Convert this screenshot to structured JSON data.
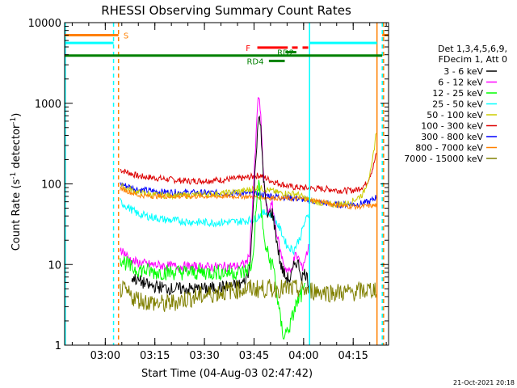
{
  "chart_data": {
    "type": "line",
    "title": "RHESSI Observing Summary Count Rates",
    "xlabel": "Start Time (04-Aug-03 02:47:42)",
    "ylabel_main": "Count Rate (s",
    "ylabel_sup1": "-1",
    "ylabel_mid": " detector",
    "ylabel_sup2": "-1",
    "ylabel_end": ")",
    "footer_date": "21-Oct-2021 20:18",
    "x_start_min": 167.7,
    "x_end_min": 265.7,
    "ylim": [
      1,
      10000
    ],
    "x_ticks": [
      {
        "min": 180,
        "label": "03:00"
      },
      {
        "min": 195,
        "label": "03:15"
      },
      {
        "min": 210,
        "label": "03:30"
      },
      {
        "min": 225,
        "label": "03:45"
      },
      {
        "min": 240,
        "label": "04:00"
      },
      {
        "min": 255,
        "label": "04:15"
      }
    ],
    "y_ticks": [
      {
        "value": 1,
        "label": "1"
      },
      {
        "value": 10,
        "label": "10"
      },
      {
        "value": 100,
        "label": "100"
      },
      {
        "value": 1000,
        "label": "1000"
      },
      {
        "value": 10000,
        "label": "10000"
      }
    ],
    "legend": {
      "header1": "Det 1,3,4,5,6,9,",
      "header2": "FDecim 1, Att 0",
      "entries": [
        {
          "label": "3 - 6 keV",
          "color": "#000000"
        },
        {
          "label": "6 - 12 keV",
          "color": "#ff00ff"
        },
        {
          "label": "12 - 25 keV",
          "color": "#00ff00"
        },
        {
          "label": "25 - 50 keV",
          "color": "#00ffff"
        },
        {
          "label": "50 - 100 keV",
          "color": "#cccc00"
        },
        {
          "label": "100 - 300 keV",
          "color": "#dd0000"
        },
        {
          "label": "300 - 800 keV",
          "color": "#0000ff"
        },
        {
          "label": "800 - 7000 keV",
          "color": "#ff8000"
        },
        {
          "label": "7000 - 15000 keV",
          "color": "#808000"
        }
      ]
    },
    "flags": [
      {
        "label": "S",
        "color": "#ff8000",
        "segments": [
          [
            167.7,
            184.0
          ]
        ],
        "y": 7000,
        "label_at": 185.5,
        "style": "solid"
      },
      {
        "label": "",
        "color": "#00ffff",
        "segments": [
          [
            167.7,
            182.5
          ],
          [
            241.8,
            262.2
          ]
        ],
        "y": 5600,
        "style": "solid"
      },
      {
        "label": "",
        "color": "#ff8000",
        "segments": [
          [
            263.8,
            265.7
          ]
        ],
        "y": 7000,
        "style": "solid"
      },
      {
        "label": "",
        "color": "#008000",
        "segments": [
          [
            167.7,
            263.8
          ]
        ],
        "y": 3900,
        "style": "solid"
      },
      {
        "label": "F",
        "color": "#ff0000",
        "segments": [
          [
            226.0,
            235.2
          ],
          [
            236.5,
            241.8
          ]
        ],
        "y": 4900,
        "label_at": 222.5,
        "style": "dashed-end"
      },
      {
        "label": "RD2",
        "color": "#008000",
        "segments": [
          [
            234.5,
            237.8
          ]
        ],
        "y": 4300,
        "label_at": 232.0,
        "style": "solid"
      },
      {
        "label": "RD4",
        "color": "#008000",
        "segments": [
          [
            229.5,
            234.3
          ]
        ],
        "y": 3350,
        "label_at": 222.8,
        "style": "solid"
      }
    ],
    "vlines": [
      {
        "min": 182.5,
        "color": "#00ffff",
        "style": "dashed"
      },
      {
        "min": 184.0,
        "color": "#ff8000",
        "style": "dashed"
      },
      {
        "min": 241.8,
        "color": "#00ffff",
        "style": "solid"
      },
      {
        "min": 262.2,
        "color": "#ff8000",
        "style": "solid"
      },
      {
        "min": 263.8,
        "color": "#00ffff",
        "style": "dashed"
      },
      {
        "min": 264.2,
        "color": "#ff8000",
        "style": "dashed"
      },
      {
        "min": 167.9,
        "color": "#00ffff",
        "style": "solid"
      }
    ],
    "series": [
      {
        "name": "100 - 300 keV",
        "color": "#dd0000",
        "noise": 0.04,
        "points": [
          [
            184.5,
            150
          ],
          [
            190,
            125
          ],
          [
            198,
            115
          ],
          [
            205,
            108
          ],
          [
            215,
            112
          ],
          [
            222,
            118
          ],
          [
            227,
            128
          ],
          [
            230,
            110
          ],
          [
            236,
            92
          ],
          [
            242,
            88
          ],
          [
            248,
            86
          ],
          [
            252,
            82
          ],
          [
            256,
            84
          ],
          [
            259,
            100
          ],
          [
            261,
            160
          ],
          [
            262.2,
            250
          ]
        ]
      },
      {
        "name": "300 - 800 keV",
        "color": "#0000ff",
        "noise": 0.04,
        "points": [
          [
            184.5,
            100
          ],
          [
            190,
            85
          ],
          [
            196,
            80
          ],
          [
            205,
            78
          ],
          [
            215,
            77
          ],
          [
            222,
            76
          ],
          [
            227,
            74
          ],
          [
            232,
            70
          ],
          [
            238,
            66
          ],
          [
            242,
            62
          ],
          [
            246,
            58
          ],
          [
            250,
            55
          ],
          [
            256,
            56
          ],
          [
            260,
            60
          ],
          [
            262.2,
            70
          ]
        ]
      },
      {
        "name": "50 - 100 keV",
        "color": "#cccc00",
        "noise": 0.04,
        "points": [
          [
            184.5,
            95
          ],
          [
            190,
            78
          ],
          [
            196,
            72
          ],
          [
            205,
            72
          ],
          [
            215,
            76
          ],
          [
            222,
            82
          ],
          [
            226,
            90
          ],
          [
            229,
            85
          ],
          [
            232,
            78
          ],
          [
            238,
            75
          ],
          [
            242,
            62
          ],
          [
            248,
            55
          ],
          [
            254,
            58
          ],
          [
            258,
            75
          ],
          [
            260.5,
            150
          ],
          [
            262,
            450
          ]
        ]
      },
      {
        "name": "800 - 7000 keV",
        "color": "#ff8000",
        "noise": 0.03,
        "points": [
          [
            184.5,
            88
          ],
          [
            190,
            72
          ],
          [
            196,
            70
          ],
          [
            205,
            70
          ],
          [
            215,
            70
          ],
          [
            222,
            70
          ],
          [
            228,
            68
          ],
          [
            234,
            66
          ],
          [
            240,
            65
          ],
          [
            244,
            62
          ],
          [
            248,
            57
          ],
          [
            252,
            53
          ],
          [
            256,
            52
          ],
          [
            262,
            54
          ]
        ]
      },
      {
        "name": "25 - 50 keV",
        "color": "#00ffff",
        "noise": 0.05,
        "points": [
          [
            184.5,
            60
          ],
          [
            190,
            42
          ],
          [
            198,
            36
          ],
          [
            205,
            34
          ],
          [
            212,
            33
          ],
          [
            220,
            34
          ],
          [
            225,
            36
          ],
          [
            227,
            42
          ],
          [
            229,
            45
          ],
          [
            231,
            38
          ],
          [
            233,
            27
          ],
          [
            235,
            17
          ],
          [
            237,
            15
          ],
          [
            239,
            22
          ],
          [
            240.5,
            35
          ],
          [
            241.5,
            40
          ]
        ]
      },
      {
        "name": "6 - 12 keV",
        "color": "#ff00ff",
        "noise": 0.06,
        "points": [
          [
            184.5,
            16
          ],
          [
            188,
            11
          ],
          [
            193,
            10
          ],
          [
            200,
            9.5
          ],
          [
            210,
            9.3
          ],
          [
            220,
            9.5
          ],
          [
            222,
            10
          ],
          [
            223.5,
            12
          ],
          [
            224.5,
            50
          ],
          [
            225.5,
            300
          ],
          [
            226.3,
            1400
          ],
          [
            227,
            700
          ],
          [
            228,
            100
          ],
          [
            229,
            45
          ],
          [
            230.5,
            55
          ],
          [
            231.5,
            30
          ],
          [
            233,
            14
          ],
          [
            234.5,
            9
          ],
          [
            236,
            8
          ],
          [
            237.5,
            13
          ],
          [
            238.5,
            12
          ],
          [
            239.5,
            9
          ],
          [
            240.5,
            12
          ],
          [
            241.5,
            16
          ]
        ]
      },
      {
        "name": "3 - 6 keV",
        "color": "#000000",
        "noise": 0.08,
        "points": [
          [
            188,
            7
          ],
          [
            193,
            5.5
          ],
          [
            200,
            5
          ],
          [
            210,
            5
          ],
          [
            220,
            5.5
          ],
          [
            222,
            6
          ],
          [
            223.5,
            8
          ],
          [
            224.5,
            30
          ],
          [
            225.5,
            200
          ],
          [
            226.3,
            700
          ],
          [
            227,
            500
          ],
          [
            228,
            100
          ],
          [
            229,
            40
          ],
          [
            230.5,
            45
          ],
          [
            231.5,
            25
          ],
          [
            233,
            10
          ],
          [
            234.5,
            7
          ],
          [
            236,
            6.5
          ],
          [
            237.5,
            11
          ],
          [
            238.5,
            10
          ],
          [
            239.5,
            7
          ],
          [
            240.5,
            8
          ],
          [
            241.5,
            6
          ]
        ]
      },
      {
        "name": "12 - 25 keV",
        "color": "#00ff00",
        "noise": 0.1,
        "points": [
          [
            184.5,
            12
          ],
          [
            188,
            9
          ],
          [
            195,
            8
          ],
          [
            205,
            8
          ],
          [
            215,
            8
          ],
          [
            222,
            8
          ],
          [
            224.5,
            10
          ],
          [
            225.5,
            40
          ],
          [
            226.3,
            110
          ],
          [
            227,
            60
          ],
          [
            228,
            20
          ],
          [
            229.5,
            12
          ],
          [
            231,
            9
          ],
          [
            232,
            4
          ],
          [
            233,
            2
          ],
          [
            234,
            1.3
          ],
          [
            235,
            1.5
          ],
          [
            236,
            1.8
          ],
          [
            237.5,
            3
          ],
          [
            239,
            4
          ],
          [
            240.5,
            5
          ]
        ]
      },
      {
        "name": "7000 - 15000 keV",
        "color": "#808000",
        "noise": 0.12,
        "points": [
          [
            184.5,
            5
          ],
          [
            188,
            4
          ],
          [
            192,
            3.5
          ],
          [
            198,
            3.2
          ],
          [
            205,
            3.8
          ],
          [
            212,
            4.3
          ],
          [
            218,
            4.8
          ],
          [
            224,
            5
          ],
          [
            230,
            5
          ],
          [
            236,
            5
          ],
          [
            242,
            4.8
          ],
          [
            248,
            4.5
          ],
          [
            254,
            4.5
          ],
          [
            258,
            4.7
          ],
          [
            262,
            5
          ]
        ]
      }
    ]
  }
}
